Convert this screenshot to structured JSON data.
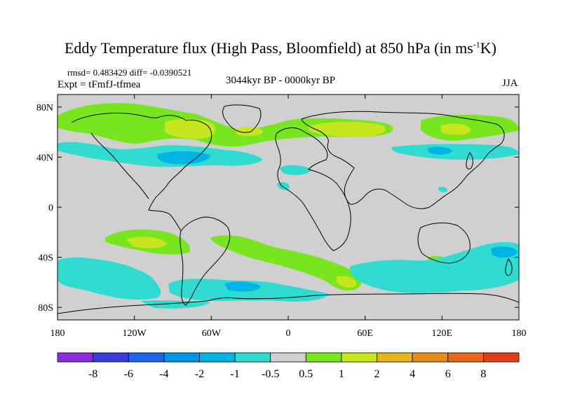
{
  "title": {
    "main": "Eddy Temperature flux (High Pass, Bloomfield) at 850 hPa (in ms",
    "sup": "-1",
    "end": "K)"
  },
  "stats_line": "rmsd= 0.483429 diff= -0.0390521",
  "experiment_line": "Expt = tFmfJ-tfmea",
  "period": "3044kyr BP - 0000kyr BP",
  "season": "JJA",
  "axes": {
    "lon_ticks": [
      {
        "value": -180,
        "label": "180"
      },
      {
        "value": -120,
        "label": "120W"
      },
      {
        "value": -60,
        "label": "60W"
      },
      {
        "value": 0,
        "label": "0"
      },
      {
        "value": 60,
        "label": "60E"
      },
      {
        "value": 120,
        "label": "120E"
      },
      {
        "value": 180,
        "label": "180"
      }
    ],
    "lat_ticks": [
      {
        "value": 80,
        "label": "80N"
      },
      {
        "value": 40,
        "label": "40N"
      },
      {
        "value": 0,
        "label": "0"
      },
      {
        "value": -40,
        "label": "40S"
      },
      {
        "value": -80,
        "label": "80S"
      }
    ],
    "lon_range": [
      -180,
      180
    ],
    "lat_range": [
      -90,
      90
    ]
  },
  "colorbar": {
    "colors": [
      "#8a2be2",
      "#3b3bdc",
      "#1e64e6",
      "#0096e6",
      "#00b4e6",
      "#30dcd2",
      "#d0d0d0",
      "#78e61e",
      "#c8e61e",
      "#e6b41e",
      "#e68c1e",
      "#e6641e",
      "#e63c1e"
    ],
    "labels": [
      "-8",
      "-6",
      "-4",
      "-2",
      "-1",
      "-0.5",
      "0.5",
      "1",
      "2",
      "4",
      "6",
      "8"
    ]
  },
  "chart_data": {
    "type": "heatmap",
    "variable": "Eddy Temperature flux (High Pass, Bloomfield) at 850 hPa",
    "units": "ms-1K",
    "levels": [
      -8,
      -6,
      -4,
      -2,
      -1,
      -0.5,
      0.5,
      1,
      2,
      4,
      6,
      8
    ],
    "background_level": "between -0.5 and 0.5",
    "anomaly_regions": [
      {
        "region": "North America / Canada 50-75N",
        "lon_range": [
          -180,
          -60
        ],
        "lat_range": [
          55,
          75
        ],
        "level": "1 to 2"
      },
      {
        "region": "Siberia 55-70N",
        "lon_range": [
          0,
          80
        ],
        "lat_range": [
          55,
          75
        ],
        "level": "1 to 2"
      },
      {
        "region": "NE Asia 55-70N",
        "lon_range": [
          100,
          180
        ],
        "lat_range": [
          55,
          70
        ],
        "level": "0.5 to 1"
      },
      {
        "region": "North Atlantic / Eastern US 30-50N",
        "lon_range": [
          -110,
          -30
        ],
        "lat_range": [
          35,
          50
        ],
        "level": "-1 to -0.5"
      },
      {
        "region": "NW Pacific 40-50N",
        "lon_range": [
          120,
          180
        ],
        "lat_range": [
          35,
          50
        ],
        "level": "-1 to -0.5"
      },
      {
        "region": "Mediterranean",
        "lon_range": [
          -15,
          15
        ],
        "lat_range": [
          25,
          35
        ],
        "level": "-1 to -0.5"
      },
      {
        "region": "South Pacific 30-40S",
        "lon_range": [
          -160,
          -100
        ],
        "lat_range": [
          -40,
          -25
        ],
        "level": "1 to 2"
      },
      {
        "region": "South Atlantic / Indian 35-50S",
        "lon_range": [
          -60,
          60
        ],
        "lat_range": [
          -50,
          -30
        ],
        "level": "0.5 to 1"
      },
      {
        "region": "Southern Ocean 50-70S",
        "lon_range": [
          -180,
          180
        ],
        "lat_range": [
          -70,
          -45
        ],
        "level": "-1 to -0.5"
      }
    ]
  }
}
